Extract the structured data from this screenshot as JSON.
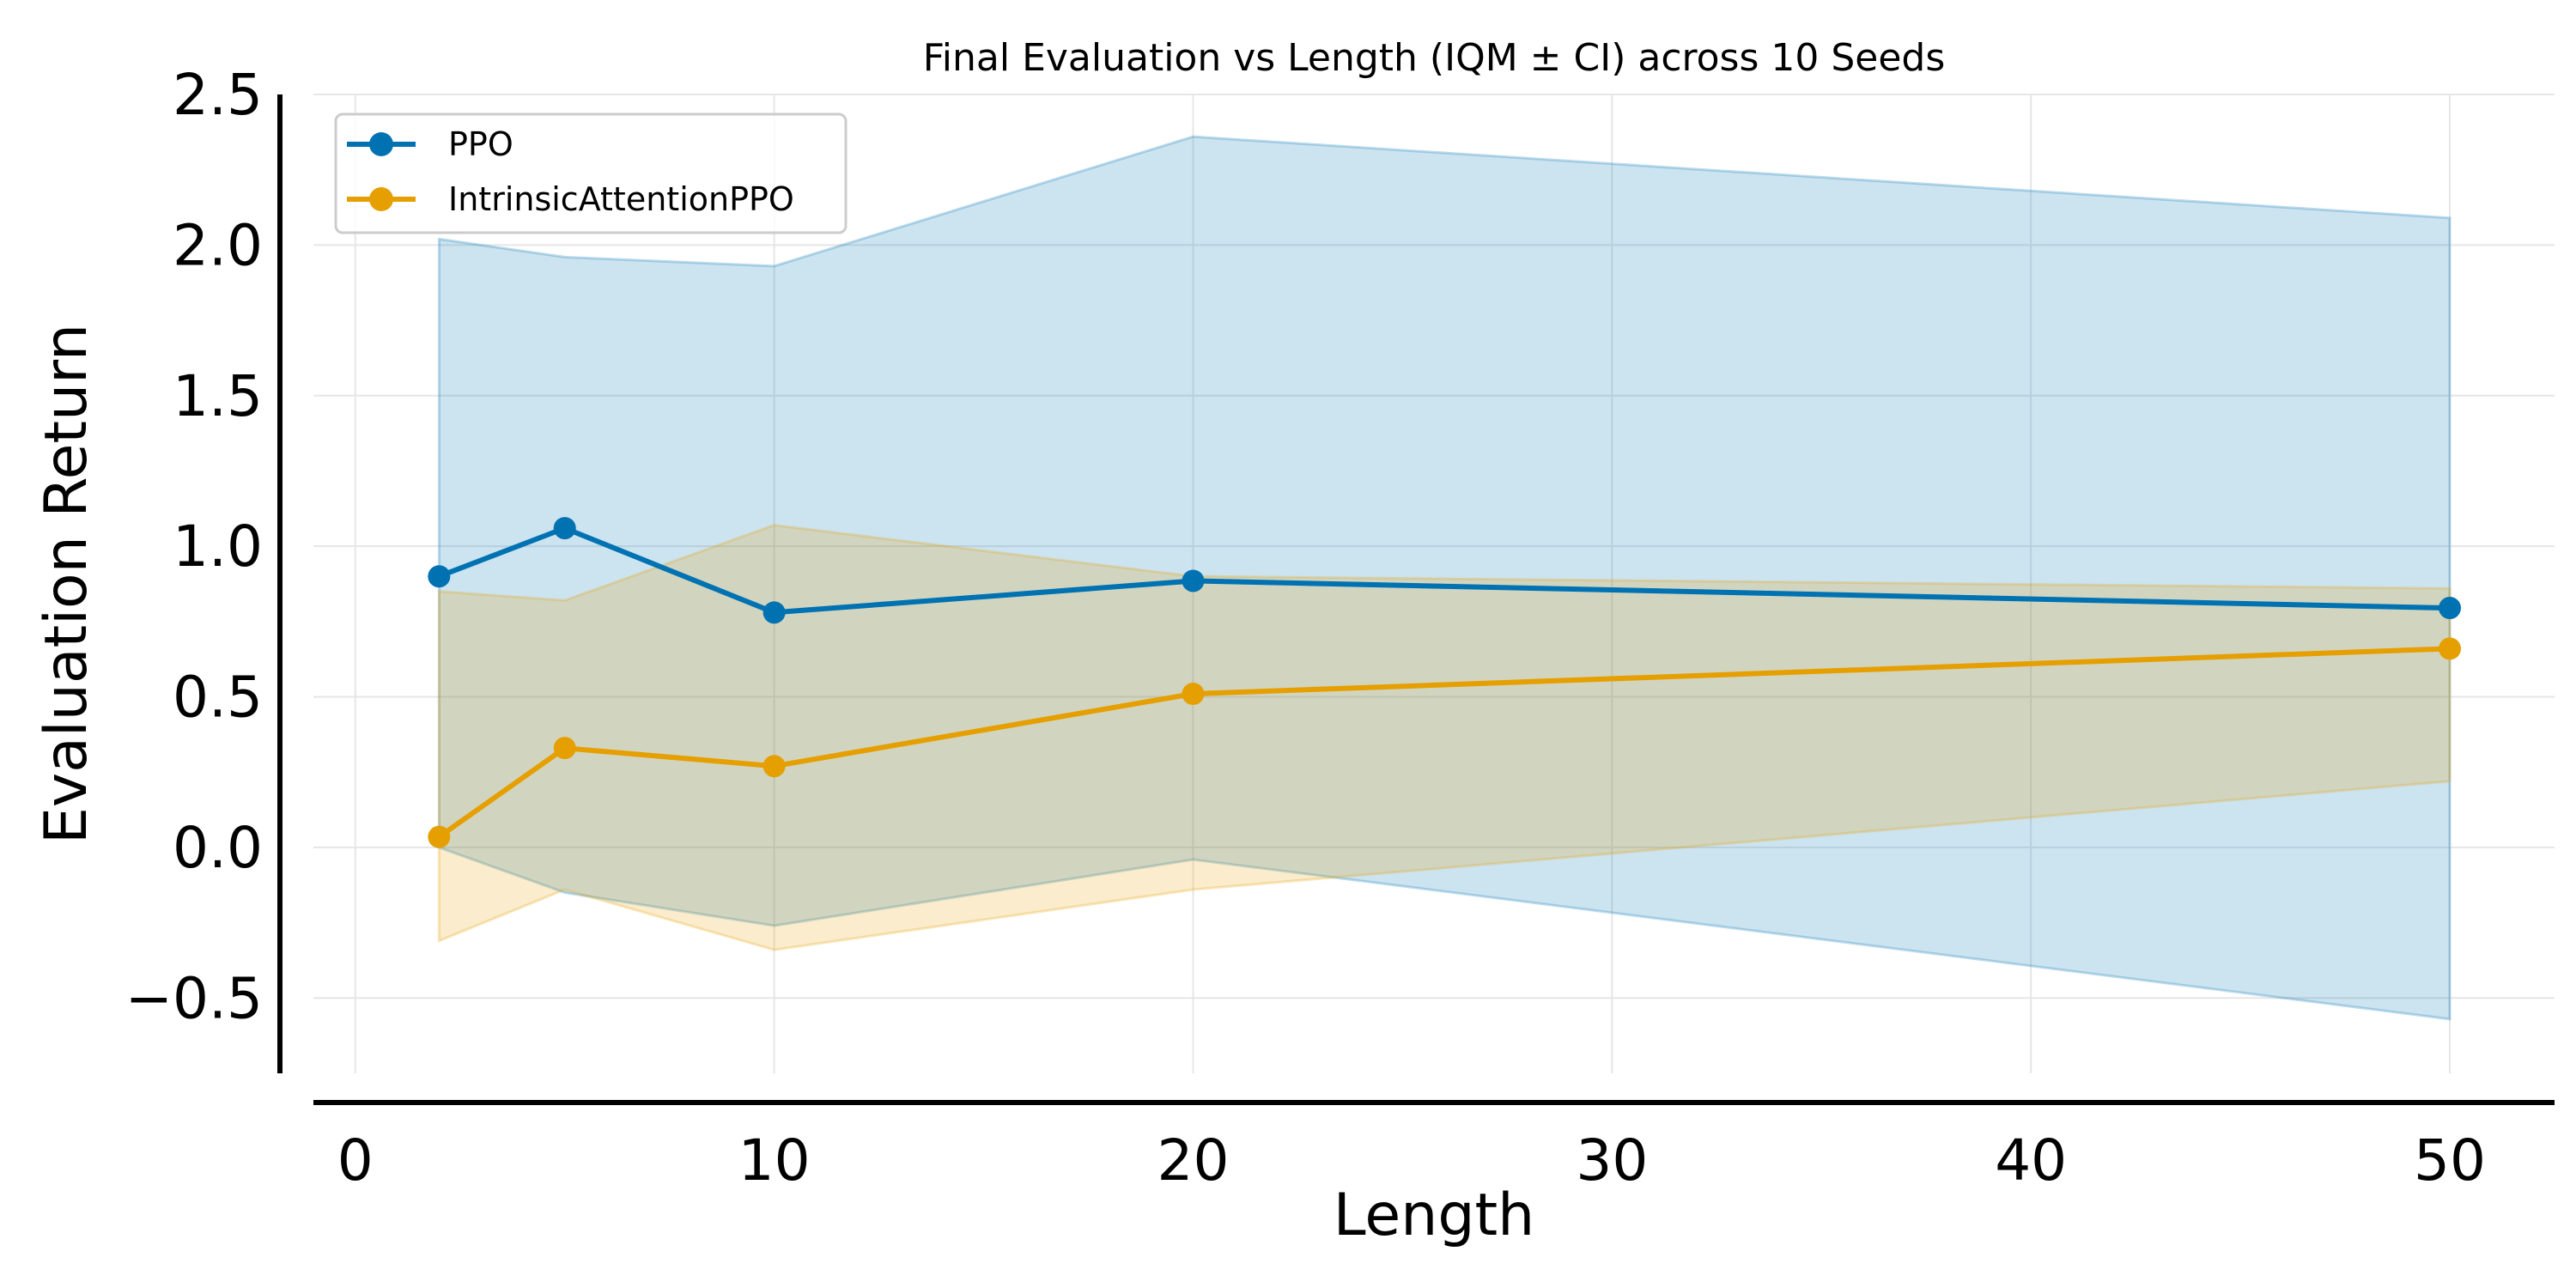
{
  "chart_data": {
    "type": "line",
    "title": "Final Evaluation vs Length (IQM ± CI) across 10 Seeds",
    "xlabel": "Length",
    "ylabel": "Evaluation Return",
    "x": [
      2,
      5,
      10,
      20,
      50
    ],
    "xlim": [
      -1,
      52.5
    ],
    "ylim": [
      -0.75,
      2.5
    ],
    "x_ticks": [
      0,
      10,
      20,
      30,
      40,
      50
    ],
    "y_ticks": [
      -0.5,
      0.0,
      0.5,
      1.0,
      1.5,
      2.0,
      2.5
    ],
    "x_tick_labels": [
      "0",
      "10",
      "20",
      "30",
      "40",
      "50"
    ],
    "y_tick_labels": [
      "−0.5",
      "0.0",
      "0.5",
      "1.0",
      "1.5",
      "2.0",
      "2.5"
    ],
    "grid": true,
    "legend_position": "top-left",
    "series": [
      {
        "name": "PPO",
        "color": "#0072b2",
        "values": [
          0.9,
          1.06,
          0.78,
          0.885,
          0.795
        ],
        "ci_lower": [
          0.0,
          -0.15,
          -0.26,
          -0.04,
          -0.57
        ],
        "ci_upper": [
          2.02,
          1.96,
          1.93,
          2.36,
          2.09
        ]
      },
      {
        "name": "IntrinsicAttentionPPO",
        "color": "#e69f00",
        "values": [
          0.035,
          0.33,
          0.27,
          0.51,
          0.66
        ],
        "ci_lower": [
          -0.31,
          -0.14,
          -0.34,
          -0.14,
          0.22
        ],
        "ci_upper": [
          0.85,
          0.82,
          1.07,
          0.9,
          0.86
        ]
      }
    ]
  }
}
